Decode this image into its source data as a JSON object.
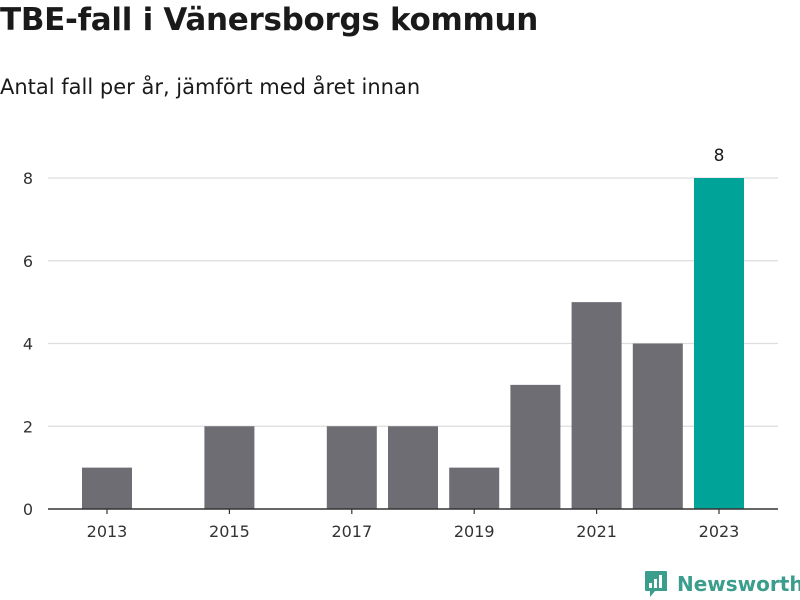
{
  "title": "TBE-fall i Vänersborgs kommun",
  "subtitle": "Antal fall per år, jämfört med året innan",
  "brand": {
    "name": "Newsworthy",
    "logo_icon": "newsworthy-logo-icon",
    "color": "#3b9e8d"
  },
  "colors": {
    "bar": "#6d6d73",
    "highlight": "#00a398",
    "grid": "#dddddd",
    "axis": "#333333"
  },
  "chart_data": {
    "type": "bar",
    "x": [
      2013,
      2014,
      2015,
      2016,
      2017,
      2018,
      2019,
      2020,
      2021,
      2022,
      2023
    ],
    "values": [
      1,
      0,
      2,
      0,
      2,
      2,
      1,
      3,
      5,
      4,
      8
    ],
    "x_tick_labels": [
      "2013",
      "2015",
      "2017",
      "2019",
      "2021",
      "2023"
    ],
    "y_ticks": [
      0,
      2,
      4,
      6,
      8
    ],
    "y_tick_labels": [
      "0",
      "2",
      "4",
      "6",
      "8"
    ],
    "ylim": [
      0,
      8
    ],
    "highlight_index": 10,
    "data_labels": [
      {
        "index": 10,
        "text": "8"
      }
    ],
    "grid": true,
    "xlabel": "",
    "ylabel": ""
  }
}
